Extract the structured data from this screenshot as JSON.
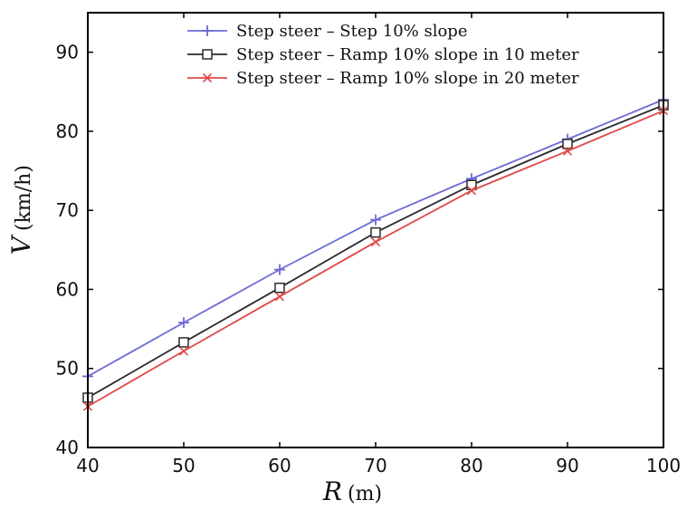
{
  "chart_data": {
    "type": "line",
    "xlabel_var": "R",
    "xlabel_unit": "(m)",
    "ylabel_var": "V",
    "ylabel_unit": "(km/h)",
    "xlim": [
      40,
      100
    ],
    "ylim": [
      40,
      95
    ],
    "x_ticks": [
      40,
      50,
      60,
      70,
      80,
      90,
      100
    ],
    "y_ticks": [
      40,
      50,
      60,
      70,
      80,
      90
    ],
    "legend_position": "top-right",
    "grid": false,
    "x": [
      40,
      50,
      60,
      70,
      80,
      90,
      100
    ],
    "series": [
      {
        "name": "Step steer – Step 10% slope",
        "color": "#6b6bd6",
        "marker": "plus",
        "values": [
          49.0,
          55.8,
          62.5,
          68.8,
          74.0,
          79.0,
          84.0
        ]
      },
      {
        "name": "Step steer – Ramp 10% slope in 10 meter",
        "color": "#2a2a2a",
        "marker": "square",
        "values": [
          46.3,
          53.3,
          60.2,
          67.2,
          73.2,
          78.4,
          83.3
        ]
      },
      {
        "name": "Step steer – Ramp 10% slope in 20 meter",
        "color": "#e04848",
        "marker": "x",
        "values": [
          45.2,
          52.2,
          59.1,
          66.0,
          72.5,
          77.5,
          82.6
        ]
      }
    ]
  }
}
